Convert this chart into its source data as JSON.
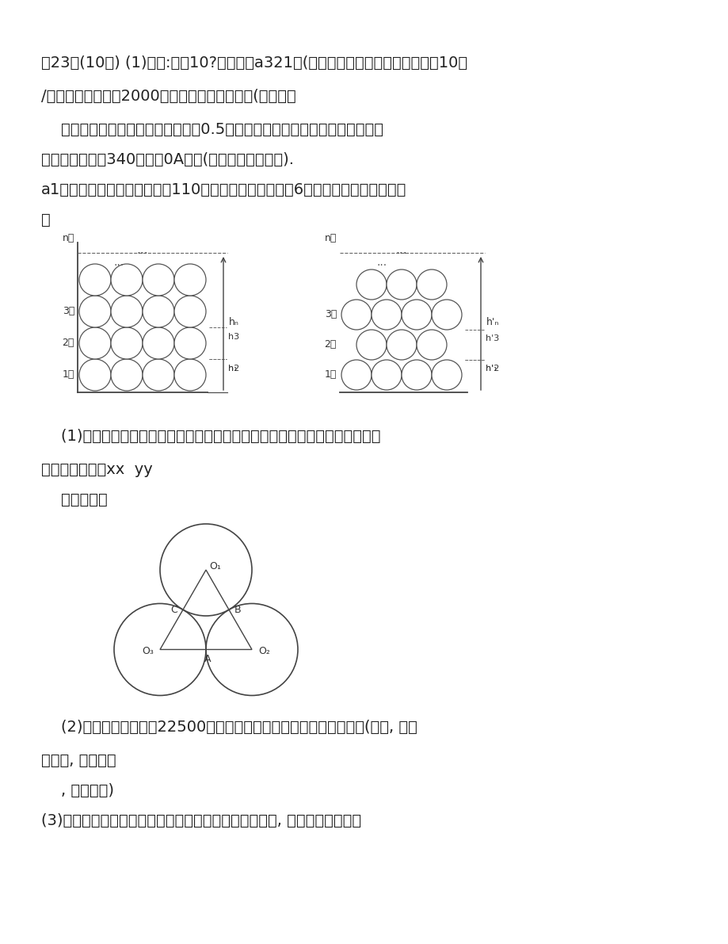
{
  "bg_color": "#ffffff",
  "text_color": "#222222",
  "line1": "，23．(10分) (1)计算:如图10?，直径为a321地(上市时，外商李经理按市场价格10元",
  "line2": "/千克在我州收购了2000千克香菇存放入冷库中(据预测，",
  "line3": "    香菇的市场价格每天每千克将上涨0.5元，但冷库存放这批香菇时每天需要支",
  "line4": "出各种费用合计340元，求0A的长(用含的代数式表示).",
  "line5": "a1而且香菇在冷库中最多保存110天，同时，平均每天有6千克的香菇损坏不能出售",
  "line6": "（",
  "sub1": "    (1)若存放天后，将这批香菇一次性出售，设这批香菇的销售总金额为元，试",
  "sub2": "写出与之间的函xx  yy",
  "sub3": "    数关系式（",
  "sub4": "    (2)李经理想获得利润22500元，需将这批香菇存放多少天后出售，(利润, 销售",
  "sub5": "总金额, 收购成本",
  "sub6": "    , 各种费用)",
  "sub7": "(3)李经理将这批香菇存放多少天后出售可获得最大利润, 最大利润是多少，"
}
